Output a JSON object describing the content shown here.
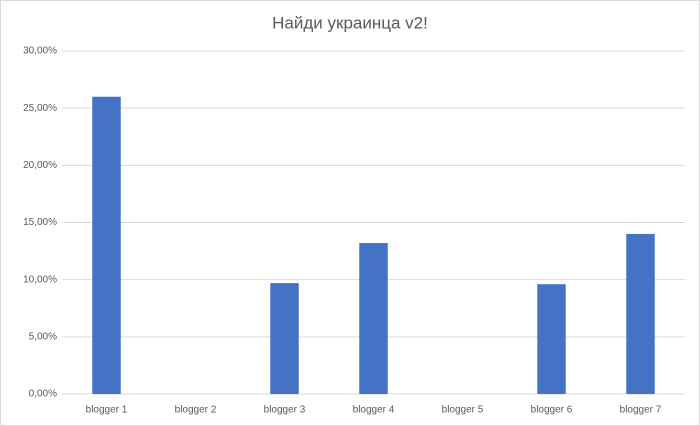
{
  "chart_data": {
    "type": "bar",
    "title": "Найди украинца v2!",
    "categories": [
      "blogger 1",
      "blogger 2",
      "blogger 3",
      "blogger 4",
      "blogger 5",
      "blogger 6",
      "blogger 7"
    ],
    "values": [
      26.0,
      0,
      9.7,
      13.2,
      0,
      9.6,
      14.0
    ],
    "color": "#4472c4",
    "ylim": [
      0,
      30
    ],
    "yticks": [
      {
        "value": 0,
        "label": "0,00%"
      },
      {
        "value": 5,
        "label": "5,00%"
      },
      {
        "value": 10,
        "label": "10,00%"
      },
      {
        "value": 15,
        "label": "15,00%"
      },
      {
        "value": 20,
        "label": "20,00%"
      },
      {
        "value": 25,
        "label": "25,00%"
      },
      {
        "value": 30,
        "label": "30,00%"
      }
    ],
    "grid": true
  }
}
